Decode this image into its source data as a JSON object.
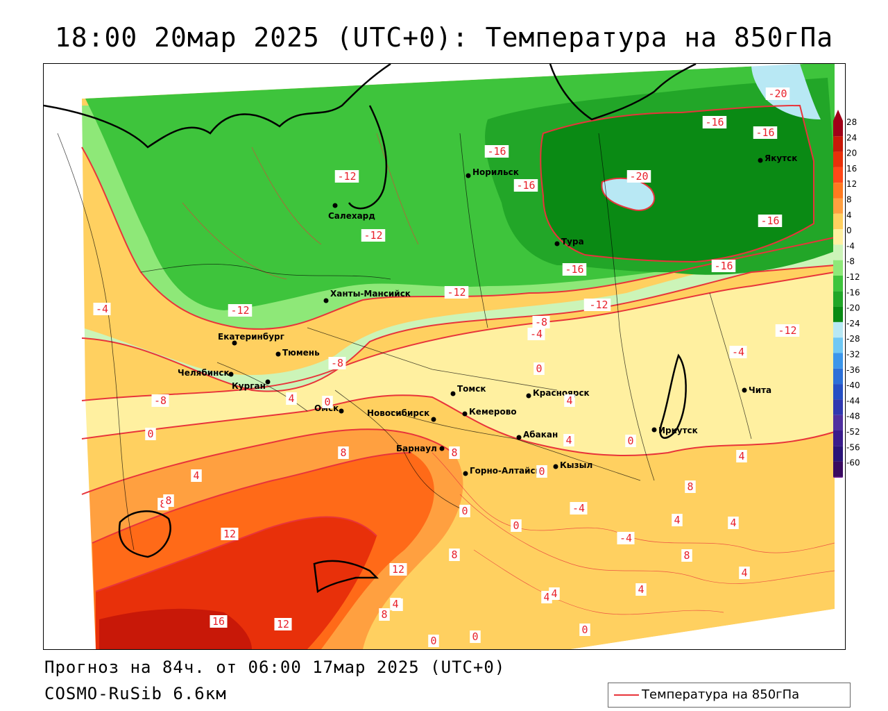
{
  "title": "18:00 20мар 2025 (UTC+0): Температура на 850гПа",
  "forecast_text": "Прогноз на 84ч. от 06:00 17мар 2025 (UTC+0)",
  "model_text": "COSMO-RuSib 6.6км",
  "legend": {
    "label": "Температура на 850гПа",
    "line_color": "#e8343a"
  },
  "colors": {
    "c_m20": "#b8e8f4",
    "c_m16": "#0a8a14",
    "c_m12": "#22a628",
    "c_m8": "#3ec43c",
    "c_m4": "#8ee878",
    "c_0": "#ccf4b8",
    "c_4": "#fff0a0",
    "c_8": "#ffd060",
    "c_12": "#ffa040",
    "c_16": "#ff6a18",
    "c_20": "#e8300a",
    "c_24": "#c81808",
    "isoline": "#e8343a"
  },
  "colorbar": {
    "top_value": "28",
    "ticks": [
      "28",
      "24",
      "20",
      "16",
      "12",
      "8",
      "4",
      "0",
      "-4",
      "-8",
      "-12",
      "-16",
      "-20",
      "-24",
      "-28",
      "-32",
      "-36",
      "-40",
      "-44",
      "-48",
      "-52",
      "-56",
      "-60"
    ],
    "colors": [
      "#a00018",
      "#c81808",
      "#e8300a",
      "#ff4818",
      "#ff7a20",
      "#ffa040",
      "#ffd060",
      "#fff0a0",
      "#ccf4b8",
      "#8ee878",
      "#3ec43c",
      "#22a628",
      "#0a8a14",
      "#b8e8f4",
      "#70c8f4",
      "#3c96ea",
      "#2c70d8",
      "#2650c4",
      "#3038b0",
      "#5030a0",
      "#3a1c8c",
      "#2a1478",
      "#3a0a60"
    ]
  },
  "cities": [
    {
      "name": "Норильск"
    },
    {
      "name": "Якутск"
    },
    {
      "name": "Салехард"
    },
    {
      "name": "Тура"
    },
    {
      "name": "Ханты-Мансийск"
    },
    {
      "name": "Екатеринбург"
    },
    {
      "name": "Тюмень"
    },
    {
      "name": "Челябинск"
    },
    {
      "name": "Курган"
    },
    {
      "name": "Омск"
    },
    {
      "name": "Томск"
    },
    {
      "name": "Новосибирск"
    },
    {
      "name": "Кемерово"
    },
    {
      "name": "Красноярск"
    },
    {
      "name": "Барнаул"
    },
    {
      "name": "Абакан"
    },
    {
      "name": "Горно-Алтайск"
    },
    {
      "name": "Кызыл"
    },
    {
      "name": "Иркутск"
    },
    {
      "name": "Чита"
    }
  ],
  "isoline_labels": [
    "-20",
    "-16",
    "-16",
    "-16",
    "-20",
    "-16",
    "-16",
    "-12",
    "-12",
    "-12",
    "-12",
    "-12",
    "-8",
    "-8",
    "-4",
    "-12",
    "-4",
    "0",
    "-4",
    "4",
    "4",
    "0",
    "-8",
    "0",
    "4",
    "8",
    "8",
    "4",
    "8",
    "12",
    "16",
    "12",
    "8",
    "12",
    "8",
    "4",
    "0",
    "8",
    "4",
    "0",
    "4",
    "8",
    "-4",
    "-4",
    "0",
    "0",
    "4",
    "4",
    "8",
    "4",
    "4",
    "0",
    "4",
    "-16",
    "-12",
    "-16",
    "0",
    "0",
    "4"
  ]
}
